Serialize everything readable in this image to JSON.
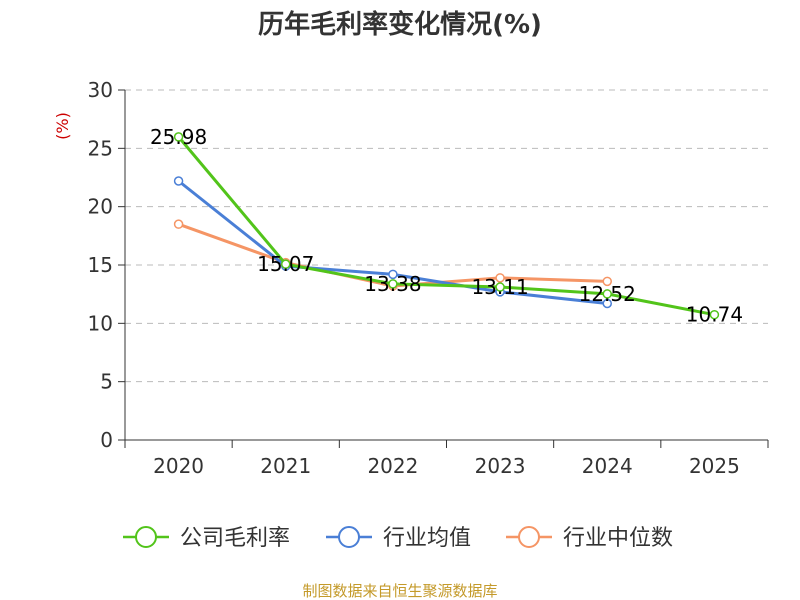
{
  "chart_data": {
    "type": "line",
    "title": "历年毛利率变化情况(%)",
    "ylabel": "(%)",
    "xlabel": "",
    "categories": [
      "2020",
      "2021",
      "2022",
      "2023",
      "2024",
      "2025"
    ],
    "ylim": [
      0,
      30
    ],
    "yticks": [
      0,
      5,
      10,
      15,
      20,
      25,
      30
    ],
    "grid": true,
    "legend_position": "bottom",
    "series": [
      {
        "name": "公司毛利率",
        "color": "#52c41a",
        "values": [
          25.98,
          15.07,
          13.38,
          13.11,
          12.52,
          10.74
        ],
        "labels": [
          "25.98",
          "15.07",
          "13.38",
          "13.11",
          "12.52",
          "10.74"
        ]
      },
      {
        "name": "行业均值",
        "color": "#4a7fd6",
        "values": [
          22.2,
          14.9,
          14.2,
          12.7,
          11.7,
          null
        ]
      },
      {
        "name": "行业中位数",
        "color": "#f59565",
        "values": [
          18.5,
          15.2,
          13.2,
          13.9,
          13.6,
          null
        ]
      }
    ],
    "source": "制图数据来自恒生聚源数据库"
  }
}
